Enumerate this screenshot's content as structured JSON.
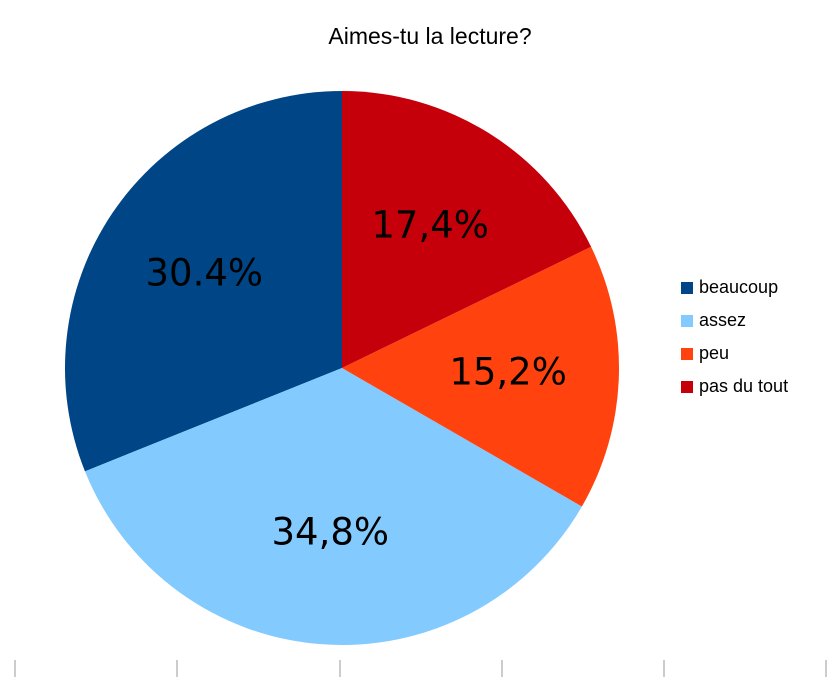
{
  "chart_data": {
    "type": "pie",
    "title": "Aimes-tu la lecture?",
    "categories": [
      "beaucoup",
      "assez",
      "peu",
      "pas du tout"
    ],
    "values": [
      30.4,
      34.8,
      15.2,
      17.4
    ],
    "value_labels": [
      "30.4%",
      "34,8%",
      "15,2%",
      "17,4%"
    ],
    "colors": [
      "#004586",
      "#83caff",
      "#ff420e",
      "#c5000b"
    ],
    "legend": "right"
  }
}
